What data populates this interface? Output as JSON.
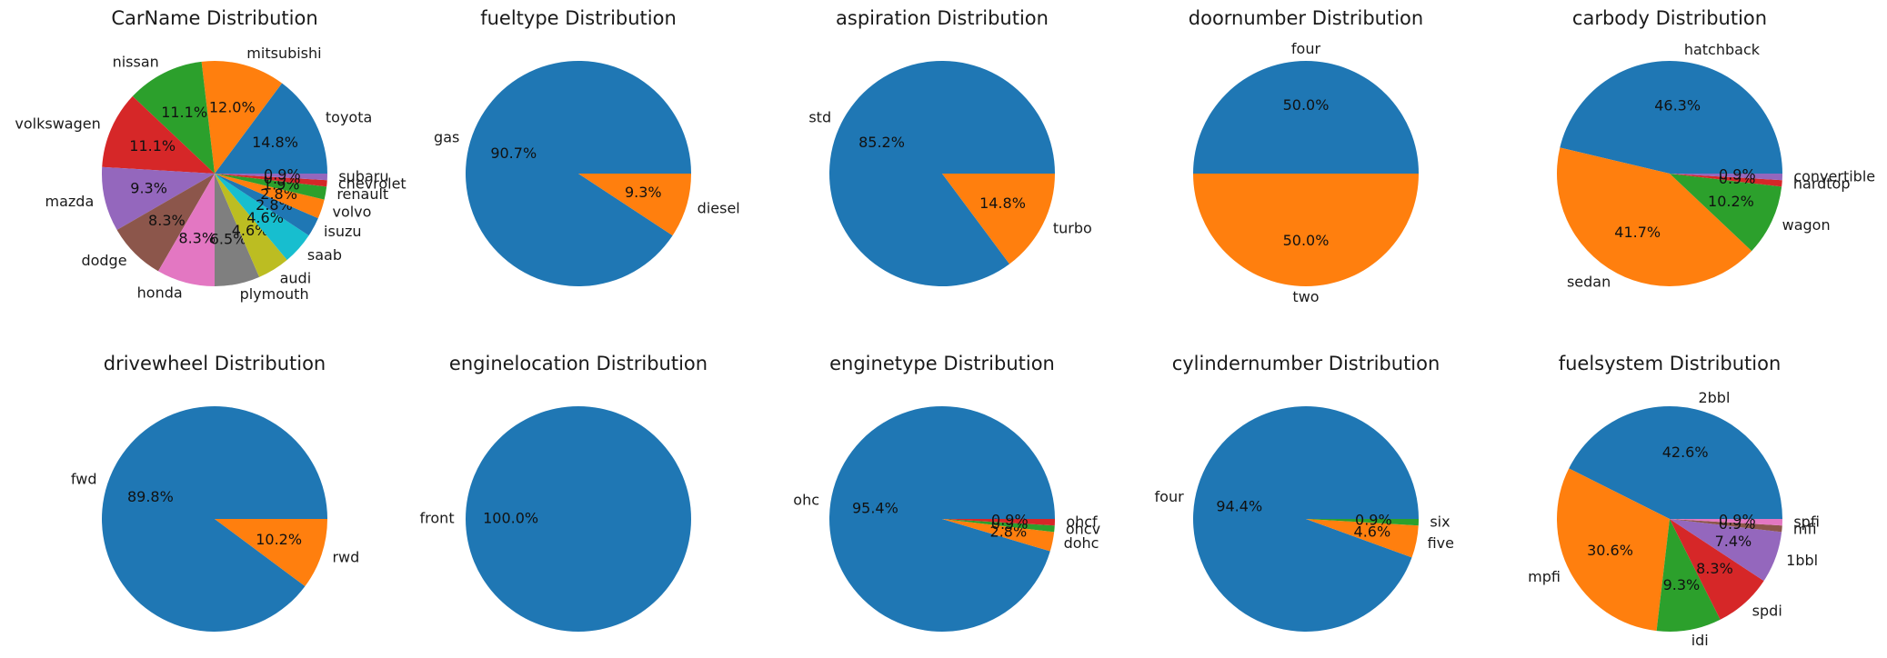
{
  "palette": [
    "#1f77b4",
    "#ff7f0e",
    "#2ca02c",
    "#d62728",
    "#9467bd",
    "#8c564b",
    "#e377c2",
    "#7f7f7f",
    "#bcbd22",
    "#17becf"
  ],
  "chart_data": [
    {
      "type": "pie",
      "title": "CarName Distribution",
      "start_angle_deg": 0,
      "labels": [
        "toyota",
        "mitsubishi",
        "nissan",
        "volkswagen",
        "mazda",
        "dodge",
        "honda",
        "plymouth",
        "audi",
        "saab",
        "isuzu",
        "volvo",
        "renault",
        "chevrolet",
        "subaru"
      ],
      "values": [
        16,
        13,
        12,
        12,
        10,
        9,
        9,
        7,
        5,
        5,
        3,
        3,
        2,
        1,
        1
      ],
      "percent_labels": [
        "14.8%",
        "12.0%",
        "11.1%",
        "11.1%",
        "9.3%",
        "8.3%",
        "8.3%",
        "6.5%",
        "4.6%",
        "4.6%",
        "2.8%",
        "2.8%",
        "1.9%",
        "0.9%",
        "0.9%"
      ]
    },
    {
      "type": "pie",
      "title": "fueltype Distribution",
      "start_angle_deg": 0,
      "labels": [
        "gas",
        "diesel"
      ],
      "values": [
        98,
        10
      ],
      "percent_labels": [
        "90.7%",
        "9.3%"
      ]
    },
    {
      "type": "pie",
      "title": "aspiration Distribution",
      "start_angle_deg": 0,
      "labels": [
        "std",
        "turbo"
      ],
      "values": [
        92,
        16
      ],
      "percent_labels": [
        "85.2%",
        "14.8%"
      ]
    },
    {
      "type": "pie",
      "title": "doornumber Distribution",
      "start_angle_deg": 0,
      "labels": [
        "four",
        "two"
      ],
      "values": [
        54,
        54
      ],
      "percent_labels": [
        "50.0%",
        "50.0%"
      ]
    },
    {
      "type": "pie",
      "title": "carbody Distribution",
      "start_angle_deg": 0,
      "labels": [
        "hatchback",
        "sedan",
        "wagon",
        "hardtop",
        "convertible"
      ],
      "values": [
        50,
        45,
        11,
        1,
        1
      ],
      "percent_labels": [
        "46.3%",
        "41.7%",
        "10.2%",
        "0.9%",
        "0.9%"
      ]
    },
    {
      "type": "pie",
      "title": "drivewheel Distribution",
      "start_angle_deg": 0,
      "labels": [
        "fwd",
        "rwd"
      ],
      "values": [
        97,
        11
      ],
      "percent_labels": [
        "89.8%",
        "10.2%"
      ]
    },
    {
      "type": "pie",
      "title": "enginelocation Distribution",
      "start_angle_deg": 0,
      "labels": [
        "front"
      ],
      "values": [
        108
      ],
      "percent_labels": [
        "100.0%"
      ]
    },
    {
      "type": "pie",
      "title": "enginetype Distribution",
      "start_angle_deg": 0,
      "labels": [
        "ohc",
        "dohc",
        "ohcv",
        "ohcf"
      ],
      "values": [
        103,
        3,
        1,
        1
      ],
      "percent_labels": [
        "95.4%",
        "2.8%",
        "0.9%",
        "0.9%"
      ]
    },
    {
      "type": "pie",
      "title": "cylindernumber Distribution",
      "start_angle_deg": 0,
      "labels": [
        "four",
        "five",
        "six"
      ],
      "values": [
        102,
        5,
        1
      ],
      "percent_labels": [
        "94.4%",
        "4.6%",
        "0.9%"
      ]
    },
    {
      "type": "pie",
      "title": "fuelsystem Distribution",
      "start_angle_deg": 0,
      "labels": [
        "2bbl",
        "mpfi",
        "idi",
        "spdi",
        "1bbl",
        "mfi",
        "spfi"
      ],
      "values": [
        46,
        33,
        10,
        9,
        8,
        1,
        1
      ],
      "percent_labels": [
        "42.6%",
        "30.6%",
        "9.3%",
        "8.3%",
        "7.4%",
        "0.9%",
        "0.9%"
      ]
    }
  ]
}
